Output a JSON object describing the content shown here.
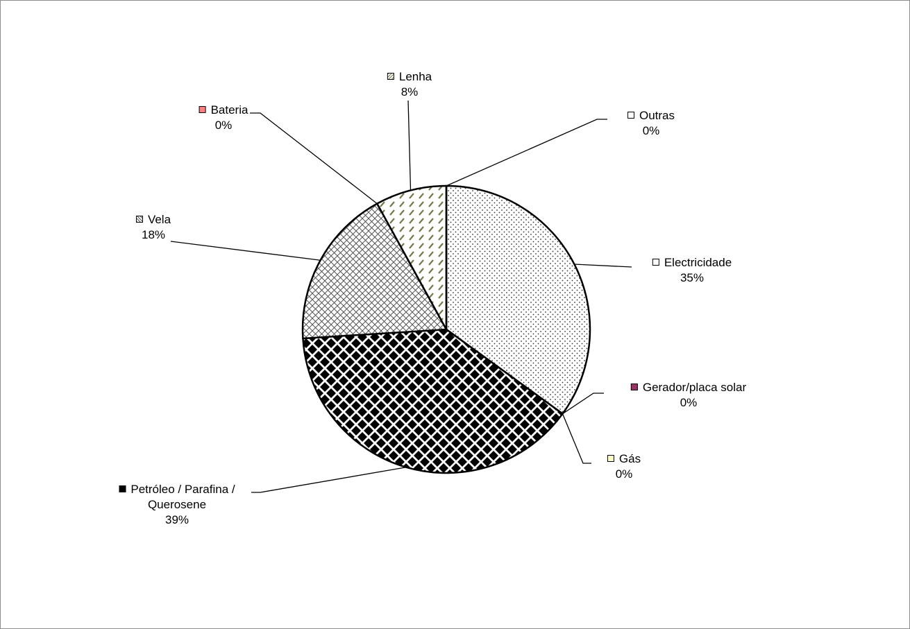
{
  "chart_data": {
    "type": "pie",
    "categories": [
      "Electricidade",
      "Gerador/placa solar",
      "Gás",
      "Petróleo / Parafina / Querosene",
      "Vela",
      "Bateria",
      "Lenha",
      "Outras"
    ],
    "values": [
      35,
      0,
      0,
      39,
      18,
      0,
      8,
      0
    ],
    "value_labels": [
      "35%",
      "0%",
      "0%",
      "39%",
      "18%",
      "0%",
      "8%",
      "0%"
    ],
    "colors": [
      "#ffffff",
      "#993366",
      "#ffffcc",
      "#000000",
      "#ffffff",
      "#ff8080",
      "#ffffff",
      "#ffffff"
    ],
    "patterns": [
      "dots",
      "none",
      "none",
      "diamonds",
      "crosshatch",
      "none",
      "diagonal",
      "none"
    ]
  }
}
